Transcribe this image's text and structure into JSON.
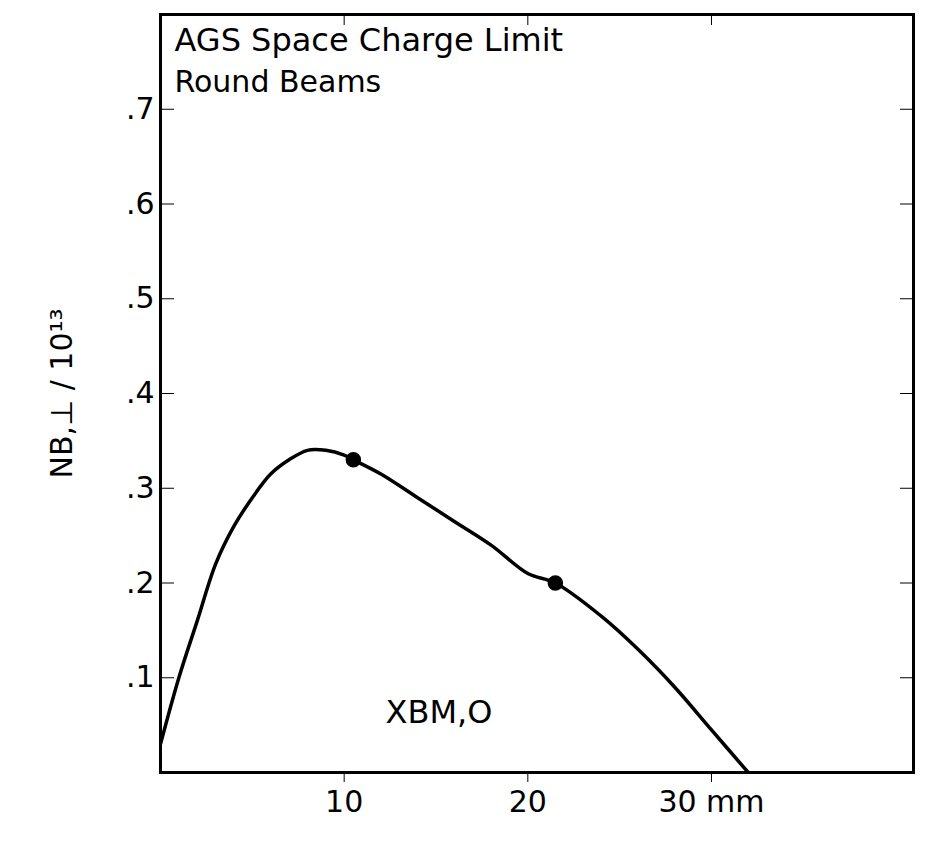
{
  "chart_data": {
    "type": "line",
    "title": "AGS Space Charge Limit",
    "subtitle": "Round Beams",
    "x_label": "XBM,O",
    "y_label": "NB,⊥ / 10¹³",
    "xlim": [
      0,
      41
    ],
    "ylim": [
      0,
      0.8
    ],
    "xticks": [
      10,
      20,
      {
        "value": 30,
        "label": "30 mm"
      }
    ],
    "yticks": [
      {
        "value": 0.1,
        "label": ".1"
      },
      {
        "value": 0.2,
        "label": ".2"
      },
      {
        "value": 0.3,
        "label": ".3"
      },
      {
        "value": 0.4,
        "label": ".4"
      },
      {
        "value": 0.5,
        "label": ".5"
      },
      {
        "value": 0.6,
        "label": ".6"
      },
      {
        "value": 0.7,
        "label": ".7"
      }
    ],
    "grid": false,
    "series": [
      {
        "type": "line",
        "color": "#000000",
        "x": [
          0,
          1,
          2,
          3,
          4,
          5,
          6,
          7,
          8,
          9,
          10,
          10.5,
          12,
          14,
          16,
          18,
          20,
          21.5,
          24,
          26,
          28,
          30,
          32
        ],
        "values": [
          0.03,
          0.1,
          0.16,
          0.22,
          0.26,
          0.29,
          0.315,
          0.33,
          0.34,
          0.34,
          0.335,
          0.33,
          0.315,
          0.29,
          0.265,
          0.24,
          0.21,
          0.2,
          0.165,
          0.13,
          0.09,
          0.045,
          0
        ]
      },
      {
        "type": "scatter",
        "color": "#000000",
        "marker": "circle",
        "x": [
          10.5,
          21.5
        ],
        "values": [
          0.33,
          0.2
        ]
      }
    ]
  }
}
